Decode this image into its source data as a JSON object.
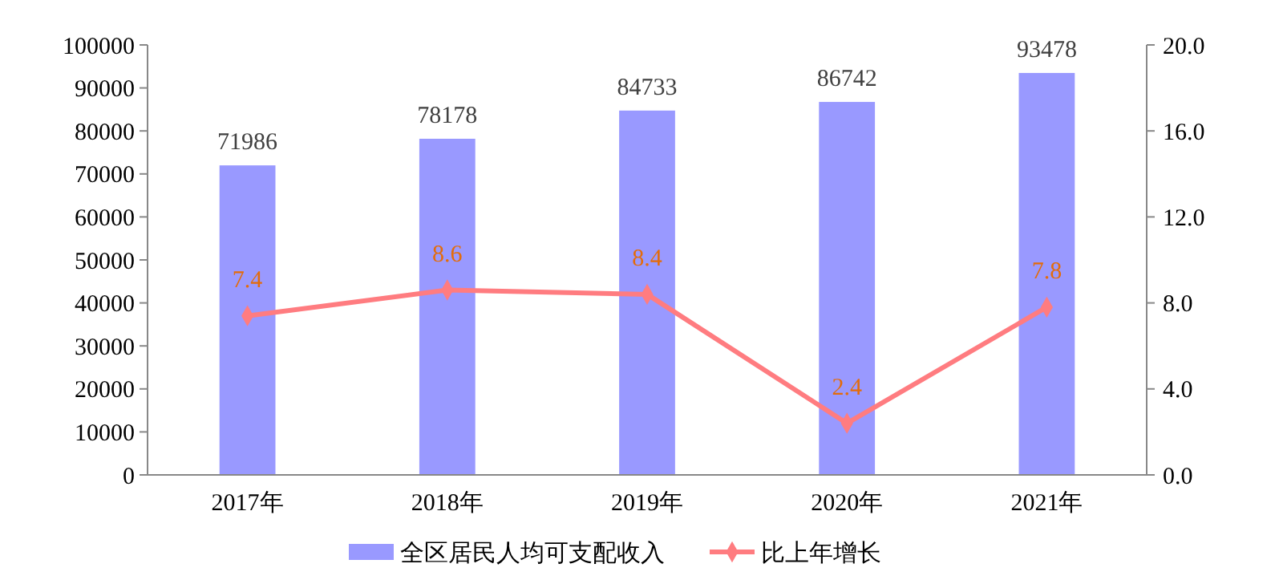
{
  "chart_data": {
    "type": "bar",
    "categories": [
      "2017年",
      "2018年",
      "2019年",
      "2020年",
      "2021年"
    ],
    "series": [
      {
        "name": "全区居民人均可支配收入",
        "color": "#9999ff",
        "values": [
          71986,
          78178,
          84733,
          86742,
          93478
        ]
      },
      {
        "name": "比上年增长",
        "type": "line",
        "axis": "y2",
        "color": "#ff7c80",
        "values": [
          7.4,
          8.6,
          8.4,
          2.4,
          7.8
        ],
        "marker": "diamond"
      }
    ],
    "ylim": [
      0,
      100000
    ],
    "yticks": [
      0,
      10000,
      20000,
      30000,
      40000,
      50000,
      60000,
      70000,
      80000,
      90000,
      100000
    ],
    "y2lim": [
      0,
      20
    ],
    "y2ticks": [
      {
        "value": 0,
        "label": "0.0"
      },
      {
        "value": 4,
        "label": "4.0"
      },
      {
        "value": 8,
        "label": "8.0"
      },
      {
        "value": 12,
        "label": "12.0"
      },
      {
        "value": 16,
        "label": "16.0"
      },
      {
        "value": 20,
        "label": "20.0"
      }
    ],
    "data_labels": true,
    "legend": "bottom",
    "grid": false
  }
}
